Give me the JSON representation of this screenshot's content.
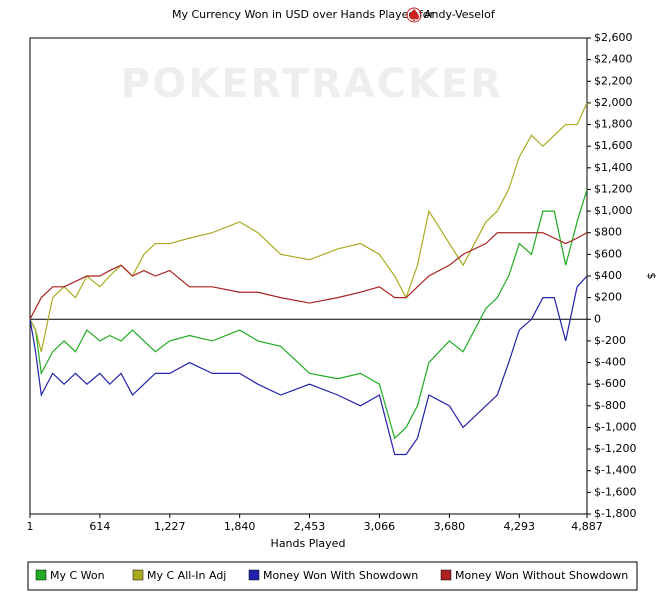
{
  "chart_data": {
    "type": "line",
    "title": "My Currency Won in USD over Hands Played for",
    "player": "Andy-Veselof",
    "watermark": "POKERTRACKER",
    "x_label": "Hands Played",
    "y_label": "$",
    "x": [
      1,
      50,
      100,
      200,
      300,
      400,
      500,
      614,
      700,
      800,
      900,
      1000,
      1100,
      1227,
      1400,
      1600,
      1840,
      2000,
      2200,
      2453,
      2700,
      2900,
      3066,
      3200,
      3300,
      3400,
      3500,
      3680,
      3800,
      4000,
      4100,
      4200,
      4293,
      4400,
      4500,
      4600,
      4700,
      4800,
      4887
    ],
    "series": [
      {
        "name": "My C Won",
        "color": "#22aa22",
        "values": [
          0,
          -100,
          -500,
          -300,
          -200,
          -300,
          -100,
          -200,
          -150,
          -200,
          -100,
          -200,
          -300,
          -200,
          -150,
          -200,
          -100,
          -200,
          -250,
          -500,
          -550,
          -500,
          -600,
          -1100,
          -1000,
          -800,
          -400,
          -200,
          -300,
          100,
          200,
          400,
          700,
          600,
          1000,
          1000,
          500,
          900,
          1200
        ]
      },
      {
        "name": "My C All-In Adj",
        "color": "#aaaa22",
        "values": [
          0,
          -100,
          -300,
          200,
          300,
          200,
          400,
          300,
          400,
          500,
          400,
          600,
          700,
          700,
          750,
          800,
          900,
          800,
          600,
          550,
          650,
          700,
          600,
          400,
          200,
          500,
          1000,
          700,
          500,
          900,
          1000,
          1200,
          1500,
          1700,
          1600,
          1700,
          1800,
          1800,
          2000
        ]
      },
      {
        "name": "Money Won With Showdown",
        "color": "#2222aa",
        "values": [
          0,
          -300,
          -700,
          -500,
          -600,
          -500,
          -600,
          -500,
          -600,
          -500,
          -700,
          -600,
          -500,
          -500,
          -400,
          -500,
          -500,
          -600,
          -700,
          -600,
          -700,
          -800,
          -700,
          -1250,
          -1250,
          -1100,
          -700,
          -800,
          -1000,
          -800,
          -700,
          -400,
          -100,
          0,
          200,
          200,
          -200,
          300,
          400
        ]
      },
      {
        "name": "Money Won Without Showdown",
        "color": "#aa2222",
        "values": [
          0,
          100,
          200,
          300,
          300,
          350,
          400,
          400,
          450,
          500,
          400,
          450,
          400,
          450,
          300,
          300,
          250,
          250,
          200,
          150,
          200,
          250,
          300,
          200,
          200,
          300,
          400,
          500,
          600,
          700,
          800,
          800,
          800,
          800,
          800,
          750,
          700,
          750,
          800
        ]
      }
    ],
    "xlim": [
      1,
      4887
    ],
    "xticks": [
      1,
      614,
      {
        "value": 1227,
        "label": "1,227"
      },
      {
        "value": 1840,
        "label": "1,840"
      },
      {
        "value": 2453,
        "label": "2,453"
      },
      {
        "value": 3066,
        "label": "3,066"
      },
      {
        "value": 3680,
        "label": "3,680"
      },
      {
        "value": 4293,
        "label": "4,293"
      },
      {
        "value": 4887,
        "label": "4,887"
      }
    ],
    "ylim": [
      -1800,
      2600
    ],
    "yticks": [
      {
        "value": 2600,
        "label": "$2,600"
      },
      {
        "value": 2400,
        "label": "$2,400"
      },
      {
        "value": 2200,
        "label": "$2,200"
      },
      {
        "value": 2000,
        "label": "$2,000"
      },
      {
        "value": 1800,
        "label": "$1,800"
      },
      {
        "value": 1600,
        "label": "$1,600"
      },
      {
        "value": 1400,
        "label": "$1,400"
      },
      {
        "value": 1200,
        "label": "$1,200"
      },
      {
        "value": 1000,
        "label": "$1,000"
      },
      {
        "value": 800,
        "label": "$800"
      },
      {
        "value": 600,
        "label": "$600"
      },
      {
        "value": 400,
        "label": "$400"
      },
      {
        "value": 200,
        "label": "$200"
      },
      0,
      {
        "value": -200,
        "label": "$-200"
      },
      {
        "value": -400,
        "label": "$-400"
      },
      {
        "value": -600,
        "label": "$-600"
      },
      {
        "value": -800,
        "label": "$-800"
      },
      {
        "value": -1000,
        "label": "$-1,000"
      },
      {
        "value": -1200,
        "label": "$-1,200"
      },
      {
        "value": -1400,
        "label": "$-1,400"
      },
      {
        "value": -1600,
        "label": "$-1,600"
      },
      {
        "value": -1800,
        "label": "$-1,800"
      }
    ],
    "grid": false,
    "legend": "bottom"
  }
}
